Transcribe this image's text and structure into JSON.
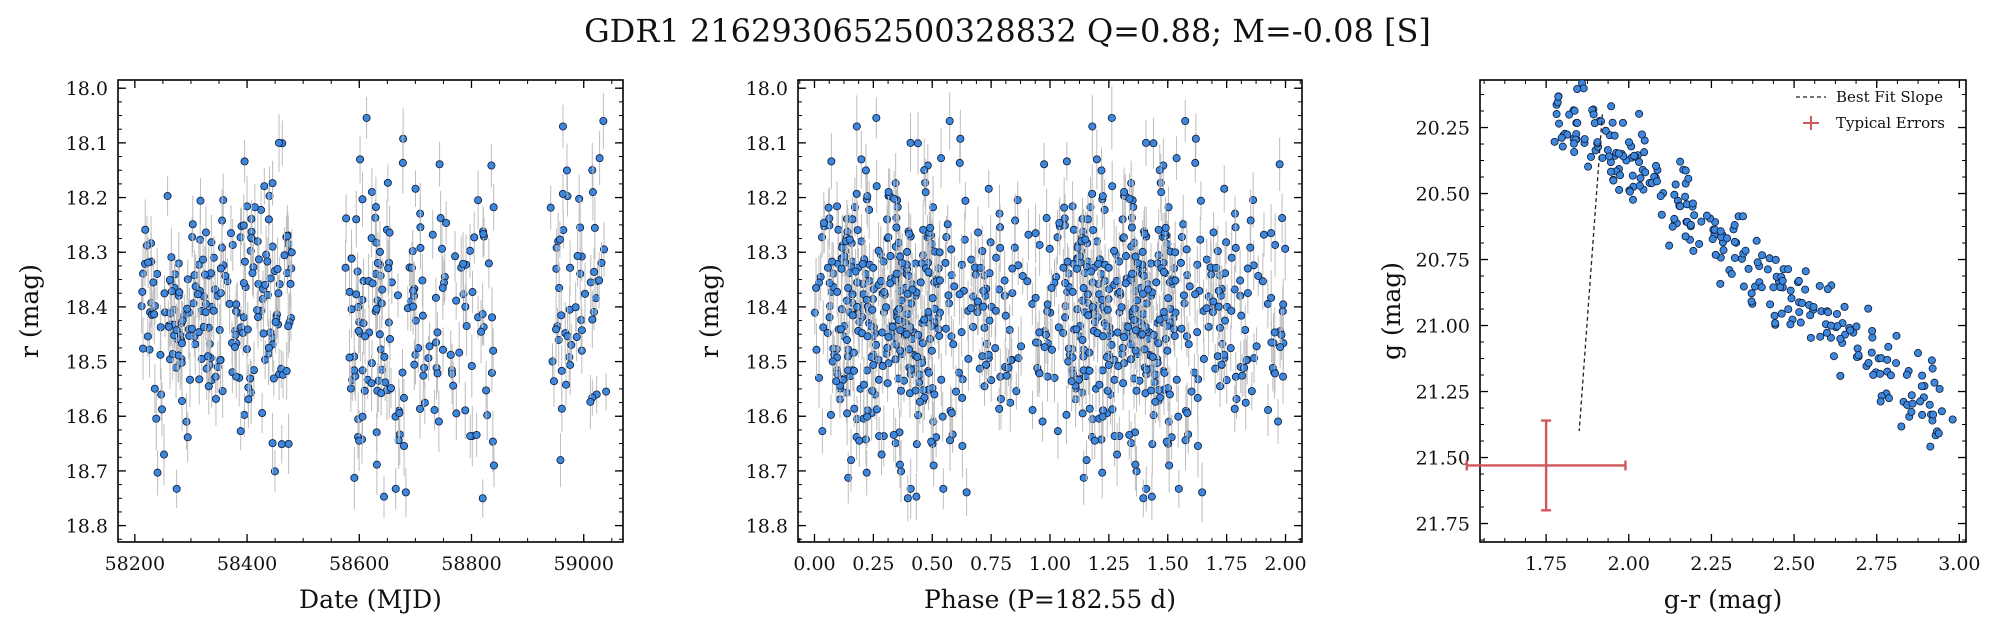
{
  "suptitle": "GDR1 2162930652500328832  Q=0.88; M=-0.08 [S]",
  "colors": {
    "point": "#3d87dc",
    "point_edge": "#0d1b3a",
    "errbar": "#bdbdbd",
    "typical_err": "#d0585c",
    "fit_line": "#222222"
  },
  "chart_data": [
    {
      "type": "scatter",
      "name": "lightcurve-date",
      "title": "",
      "xlabel": "Date (MJD)",
      "ylabel": "r (mag)",
      "xlim": [
        58170,
        59070
      ],
      "ylim": [
        18.83,
        17.985
      ],
      "y_inverted": true,
      "xticks": [
        58200,
        58400,
        58600,
        58800,
        59000
      ],
      "yticks": [
        18.0,
        18.1,
        18.2,
        18.3,
        18.4,
        18.5,
        18.6,
        18.7,
        18.8
      ],
      "points_description": "approx. 450 epochs in three observing seasons",
      "seasons": [
        {
          "x_range": [
            58212,
            58480
          ],
          "y_mean": 18.41,
          "y_sd": 0.11,
          "n": 230
        },
        {
          "x_range": [
            58575,
            58840
          ],
          "y_mean": 18.42,
          "y_sd": 0.13,
          "n": 170
        },
        {
          "x_range": [
            58940,
            59040
          ],
          "y_mean": 18.38,
          "y_sd": 0.12,
          "n": 55
        }
      ],
      "highlights": [
        [
          58457,
          18.1
        ],
        [
          58963,
          18.07
        ],
        [
          59035,
          18.06
        ],
        [
          58820,
          18.75
        ],
        [
          58840,
          18.69
        ],
        [
          58252,
          18.67
        ]
      ]
    },
    {
      "type": "scatter",
      "name": "lightcurve-phase",
      "title": "",
      "xlabel": "Phase (P=182.55 d)",
      "ylabel": "r (mag)",
      "xlim": [
        -0.07,
        2.07
      ],
      "ylim": [
        18.83,
        17.985
      ],
      "y_inverted": true,
      "xticks": [
        0.0,
        0.25,
        0.5,
        0.75,
        1.0,
        1.25,
        1.5,
        1.75,
        2.0
      ],
      "xtick_labels": [
        "0.00",
        "0.25",
        "0.50",
        "0.75",
        "1.00",
        "1.25",
        "1.50",
        "1.75",
        "2.00"
      ],
      "yticks": [
        18.0,
        18.1,
        18.2,
        18.3,
        18.4,
        18.5,
        18.6,
        18.7,
        18.8
      ],
      "period_days": 182.55,
      "points_description": "lightcurve folded on P=182.55 d, plotted twice over phase 0-2",
      "y_mean": 18.42,
      "y_sd": 0.12
    },
    {
      "type": "scatter",
      "name": "color-magnitude",
      "title": "",
      "xlabel": "g-r (mag)",
      "ylabel": "g (mag)",
      "xlim": [
        1.55,
        3.02
      ],
      "ylim": [
        21.82,
        20.07
      ],
      "y_inverted": true,
      "xticks": [
        1.75,
        2.0,
        2.25,
        2.5,
        2.75,
        3.0
      ],
      "xtick_labels": [
        "1.75",
        "2.00",
        "2.25",
        "2.50",
        "2.75",
        "3.00"
      ],
      "yticks": [
        20.25,
        20.5,
        20.75,
        21.0,
        21.25,
        21.5,
        21.75
      ],
      "ytick_labels": [
        "20.25",
        "20.50",
        "20.75",
        "21.00",
        "21.25",
        "21.50",
        "21.75"
      ],
      "points_description": "approx. 280 points along a band from (1.80, 20.2) to (2.95, 21.35)",
      "trend": {
        "x_start": 1.8,
        "y_start": 20.18,
        "x_end": 2.95,
        "y_end": 21.35,
        "scatter_sd": 0.08
      },
      "best_fit_slope": {
        "x": [
          1.92,
          1.85
        ],
        "y": [
          20.2,
          21.4
        ]
      },
      "typical_errors": {
        "x": 1.75,
        "y": 21.53,
        "xerr": 0.24,
        "yerr": 0.17
      },
      "legend": [
        "Best Fit Slope",
        "Typical Errors"
      ],
      "legend_loc": "upper right"
    }
  ]
}
